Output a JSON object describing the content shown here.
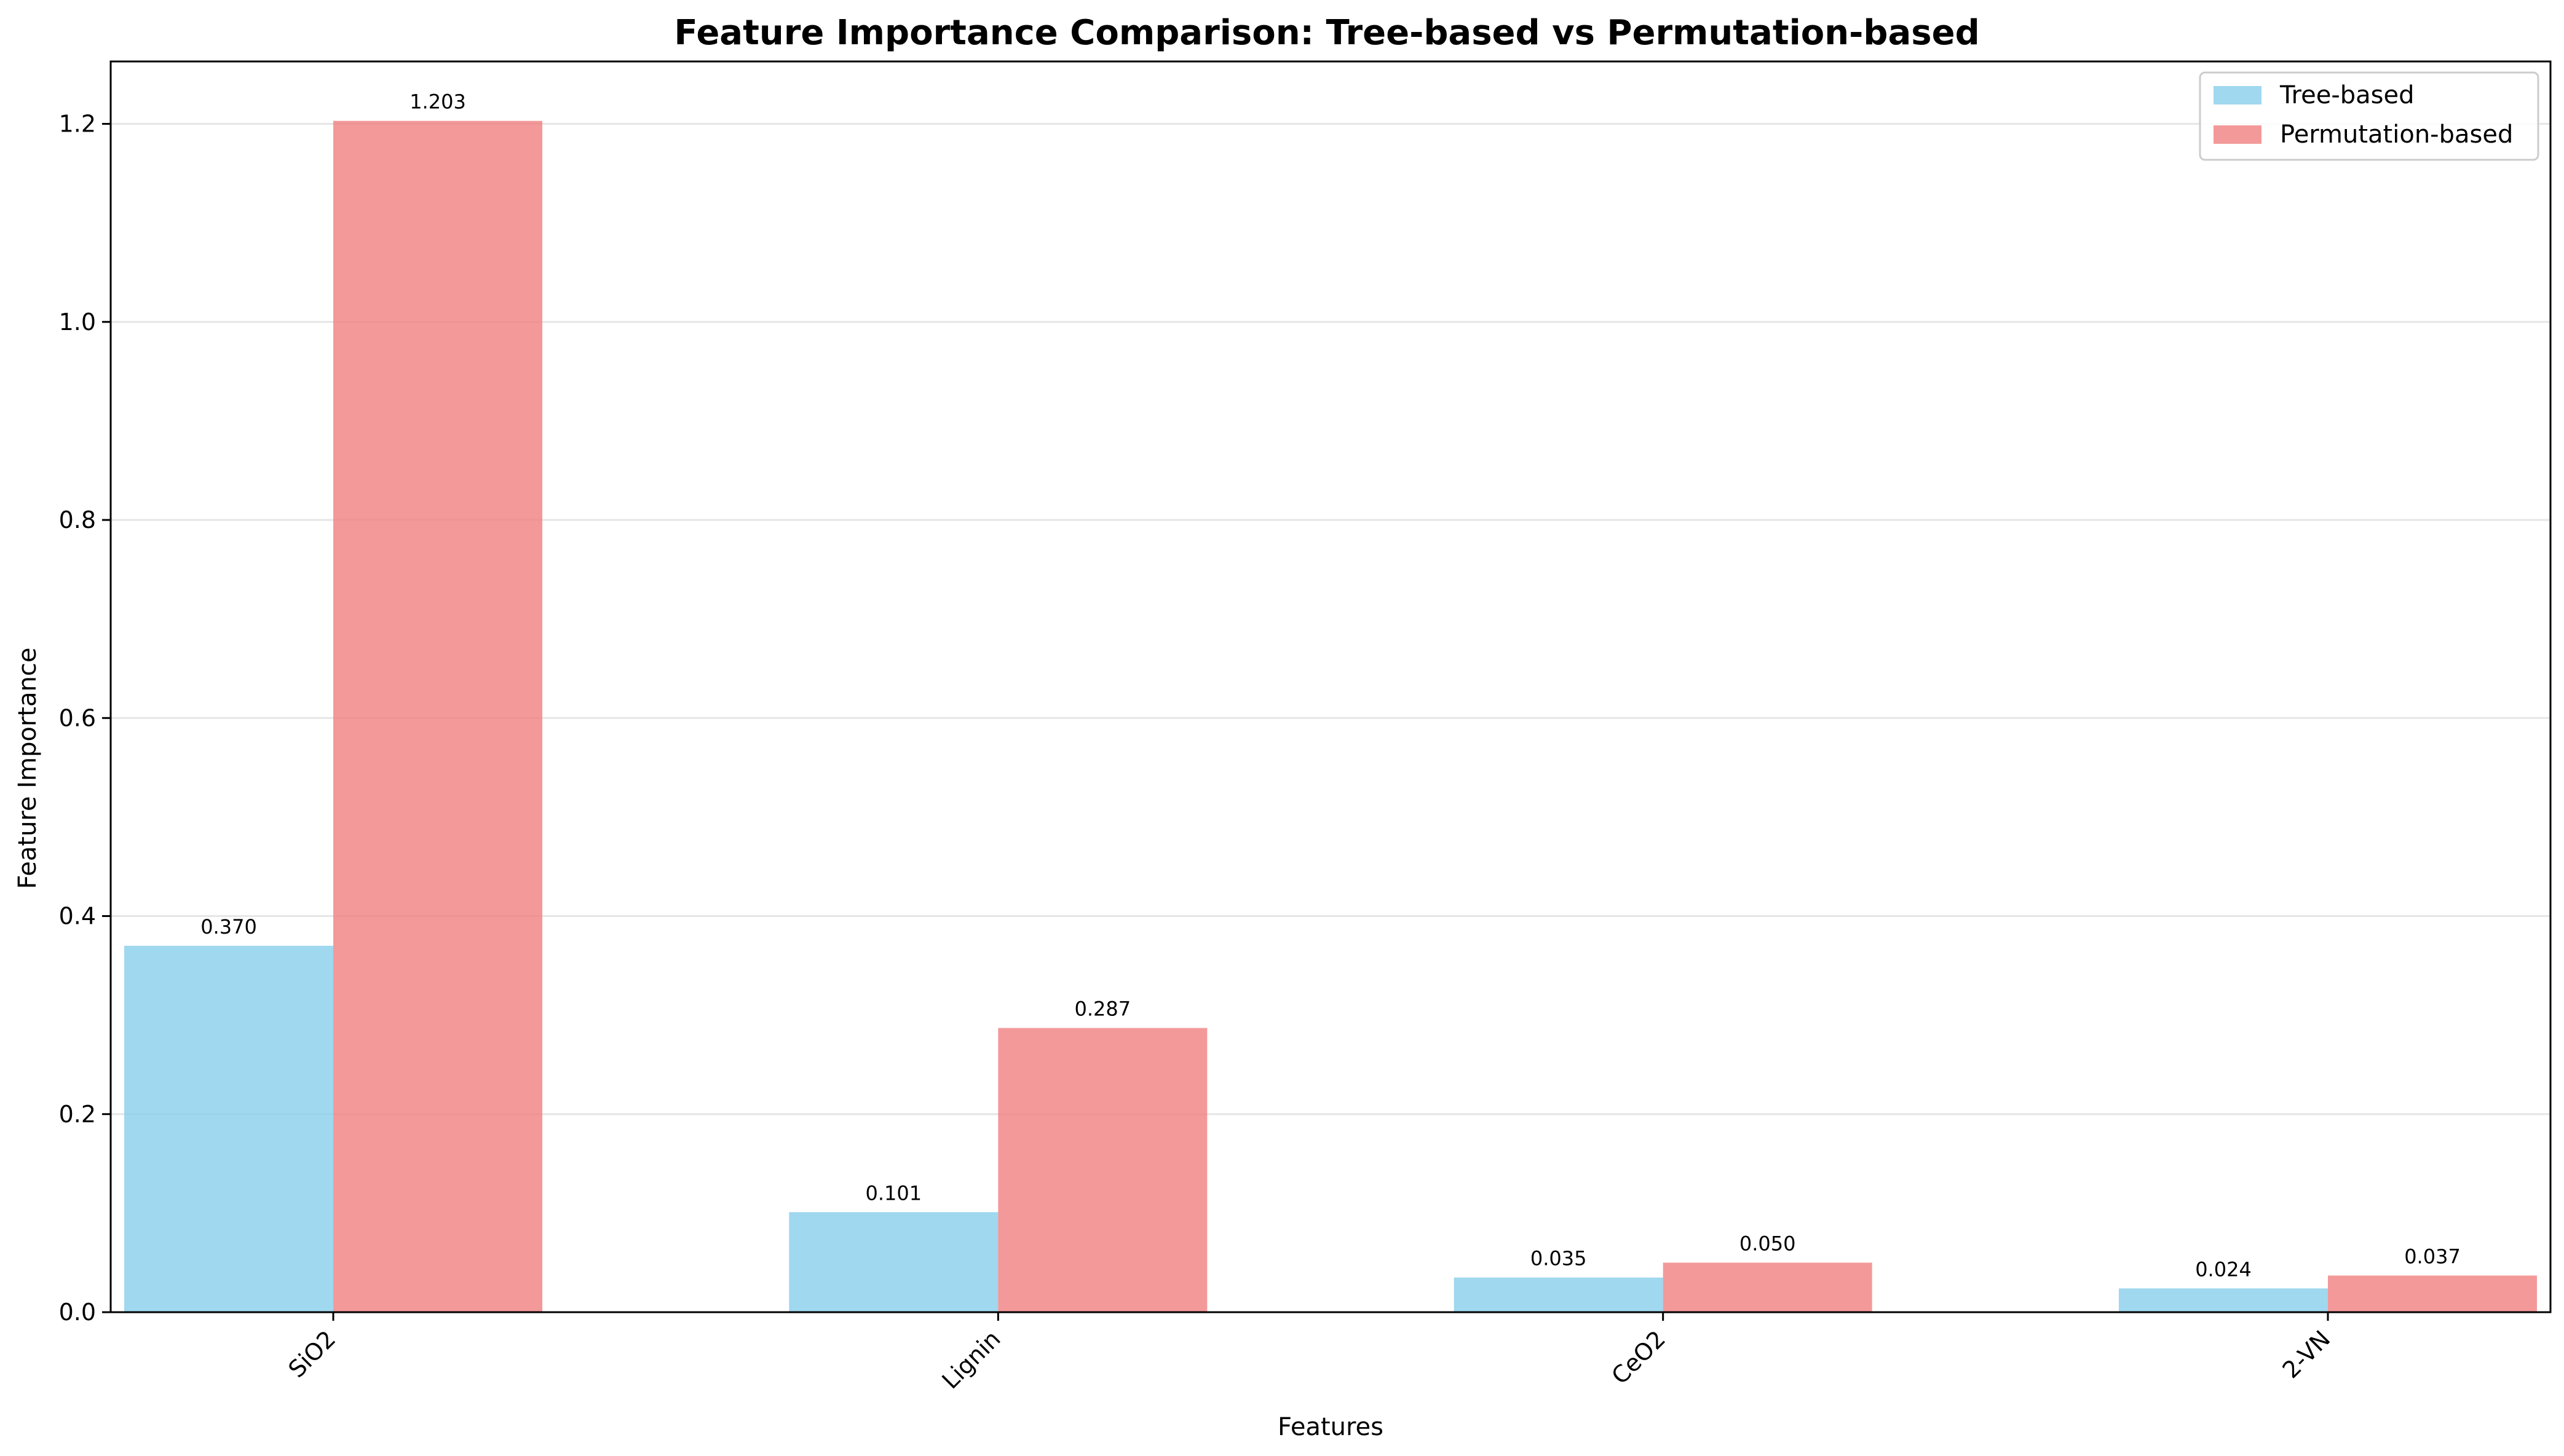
{
  "chart_data": {
    "type": "bar",
    "title": "Feature Importance Comparison: Tree-based vs Permutation-based",
    "xlabel": "Features",
    "ylabel": "Feature Importance",
    "categories": [
      "SiO2",
      "Lignin",
      "CeO2",
      "2-VN"
    ],
    "series": [
      {
        "name": "Tree-based",
        "color": "#87CEEB",
        "values": [
          0.37,
          0.101,
          0.035,
          0.024
        ],
        "labels": [
          "0.370",
          "0.101",
          "0.035",
          "0.024"
        ]
      },
      {
        "name": "Permutation-based",
        "color": "#F08080",
        "values": [
          1.203,
          0.287,
          0.05,
          0.037
        ],
        "labels": [
          "1.203",
          "0.287",
          "0.050",
          "0.037"
        ]
      }
    ],
    "ylim": [
      0,
      1.263
    ],
    "yticks": [
      0.0,
      0.2,
      0.4,
      0.6,
      0.8,
      1.0,
      1.2
    ],
    "ytick_labels": [
      "0.0",
      "0.2",
      "0.4",
      "0.6",
      "0.8",
      "1.0",
      "1.2"
    ],
    "grid": "y",
    "legend_position": "top-right"
  }
}
